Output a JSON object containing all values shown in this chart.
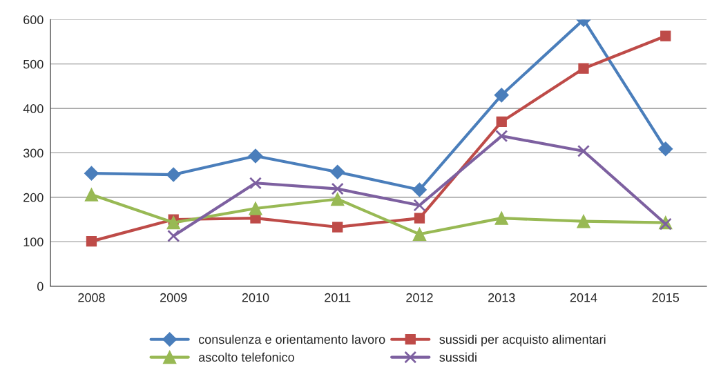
{
  "chart_data": {
    "type": "line",
    "categories": [
      "2008",
      "2009",
      "2010",
      "2011",
      "2012",
      "2013",
      "2014",
      "2015"
    ],
    "series": [
      {
        "name": "consulenza e orientamento lavoro",
        "color": "#4a7ebb",
        "marker": "diamond",
        "values": [
          254,
          251,
          293,
          257,
          217,
          430,
          600,
          309
        ]
      },
      {
        "name": "sussidi per acquisto alimentari",
        "color": "#be4b48",
        "marker": "square",
        "values": [
          101,
          150,
          153,
          133,
          153,
          370,
          490,
          563
        ]
      },
      {
        "name": "ascolto telefonico",
        "color": "#98b954",
        "marker": "triangle",
        "values": [
          206,
          143,
          175,
          196,
          117,
          153,
          146,
          143
        ]
      },
      {
        "name": "sussidi",
        "color": "#7d60a0",
        "marker": "cross",
        "values": [
          null,
          113,
          232,
          219,
          182,
          338,
          304,
          140
        ]
      }
    ],
    "ylim": [
      0,
      600
    ],
    "yticks": [
      0,
      100,
      200,
      300,
      400,
      500,
      600
    ],
    "grid": "y",
    "legend": "bottom",
    "line_style": "solid"
  }
}
